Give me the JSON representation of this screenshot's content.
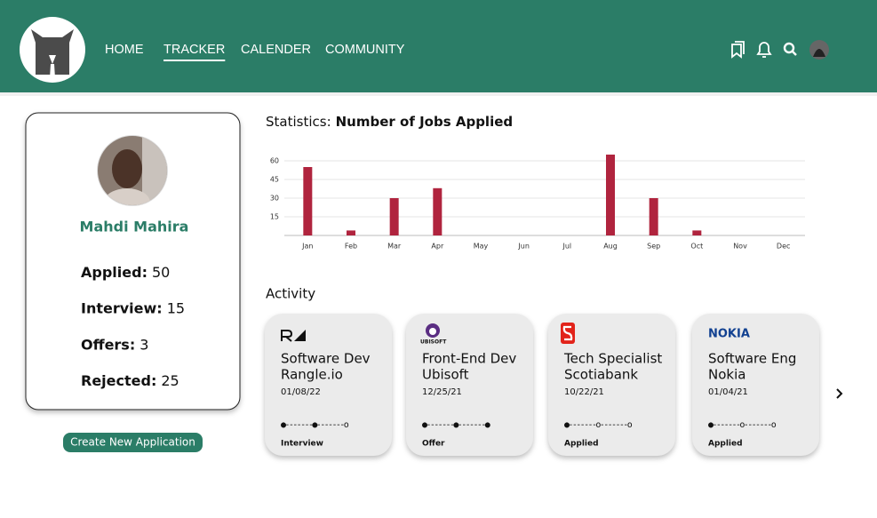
{
  "header": {
    "nav": [
      "HOME",
      "TRACKER",
      "CALENDER",
      "COMMUNITY"
    ],
    "active": 1
  },
  "profile": {
    "name": "Mahdi Mahira",
    "stats": [
      {
        "label": "Applied:",
        "value": 50
      },
      {
        "label": "Interview:",
        "value": 15
      },
      {
        "label": "Offers:",
        "value": 3
      },
      {
        "label": "Rejected:",
        "value": 25
      }
    ],
    "button": "Create New Application"
  },
  "chart_data": {
    "type": "bar",
    "title_prefix": "Statistics:",
    "title": "Number of Jobs Applied",
    "categories": [
      "Jan",
      "Feb",
      "Mar",
      "Apr",
      "May",
      "Jun",
      "Jul",
      "Aug",
      "Sep",
      "Oct",
      "Nov",
      "Dec"
    ],
    "values": [
      55,
      4,
      30,
      38,
      0,
      0,
      0,
      65,
      30,
      4,
      0,
      0
    ],
    "color": "#b0243e",
    "ylim": [
      0,
      70
    ],
    "yticks": [
      15,
      30,
      45,
      60
    ],
    "grid": true
  },
  "activity": {
    "title": "Activity",
    "cards": [
      {
        "logo": "",
        "role": "Software Dev",
        "company": "Rangle.io",
        "date": "01/08/22",
        "progress": "●-------●-------o",
        "status": "Interview",
        "status_color": "#111111"
      },
      {
        "logo": "UBISOFT",
        "role": "Front-End Dev",
        "company": "Ubisoft",
        "date": "12/25/21",
        "progress": "●-------●-------●",
        "status": "Offer",
        "status_color": "#2aa12a"
      },
      {
        "logo": "",
        "role": "Tech Specialist",
        "company": "Scotiabank",
        "date": "10/22/21",
        "progress": "●-------o-------o",
        "status": "Applied",
        "status_color": "#111111"
      },
      {
        "logo": "NOKIA",
        "role": "Software Eng",
        "company": "Nokia",
        "date": "01/04/21",
        "progress": "●-------o-------o",
        "status": "Applied",
        "status_color": "#111111"
      }
    ]
  }
}
